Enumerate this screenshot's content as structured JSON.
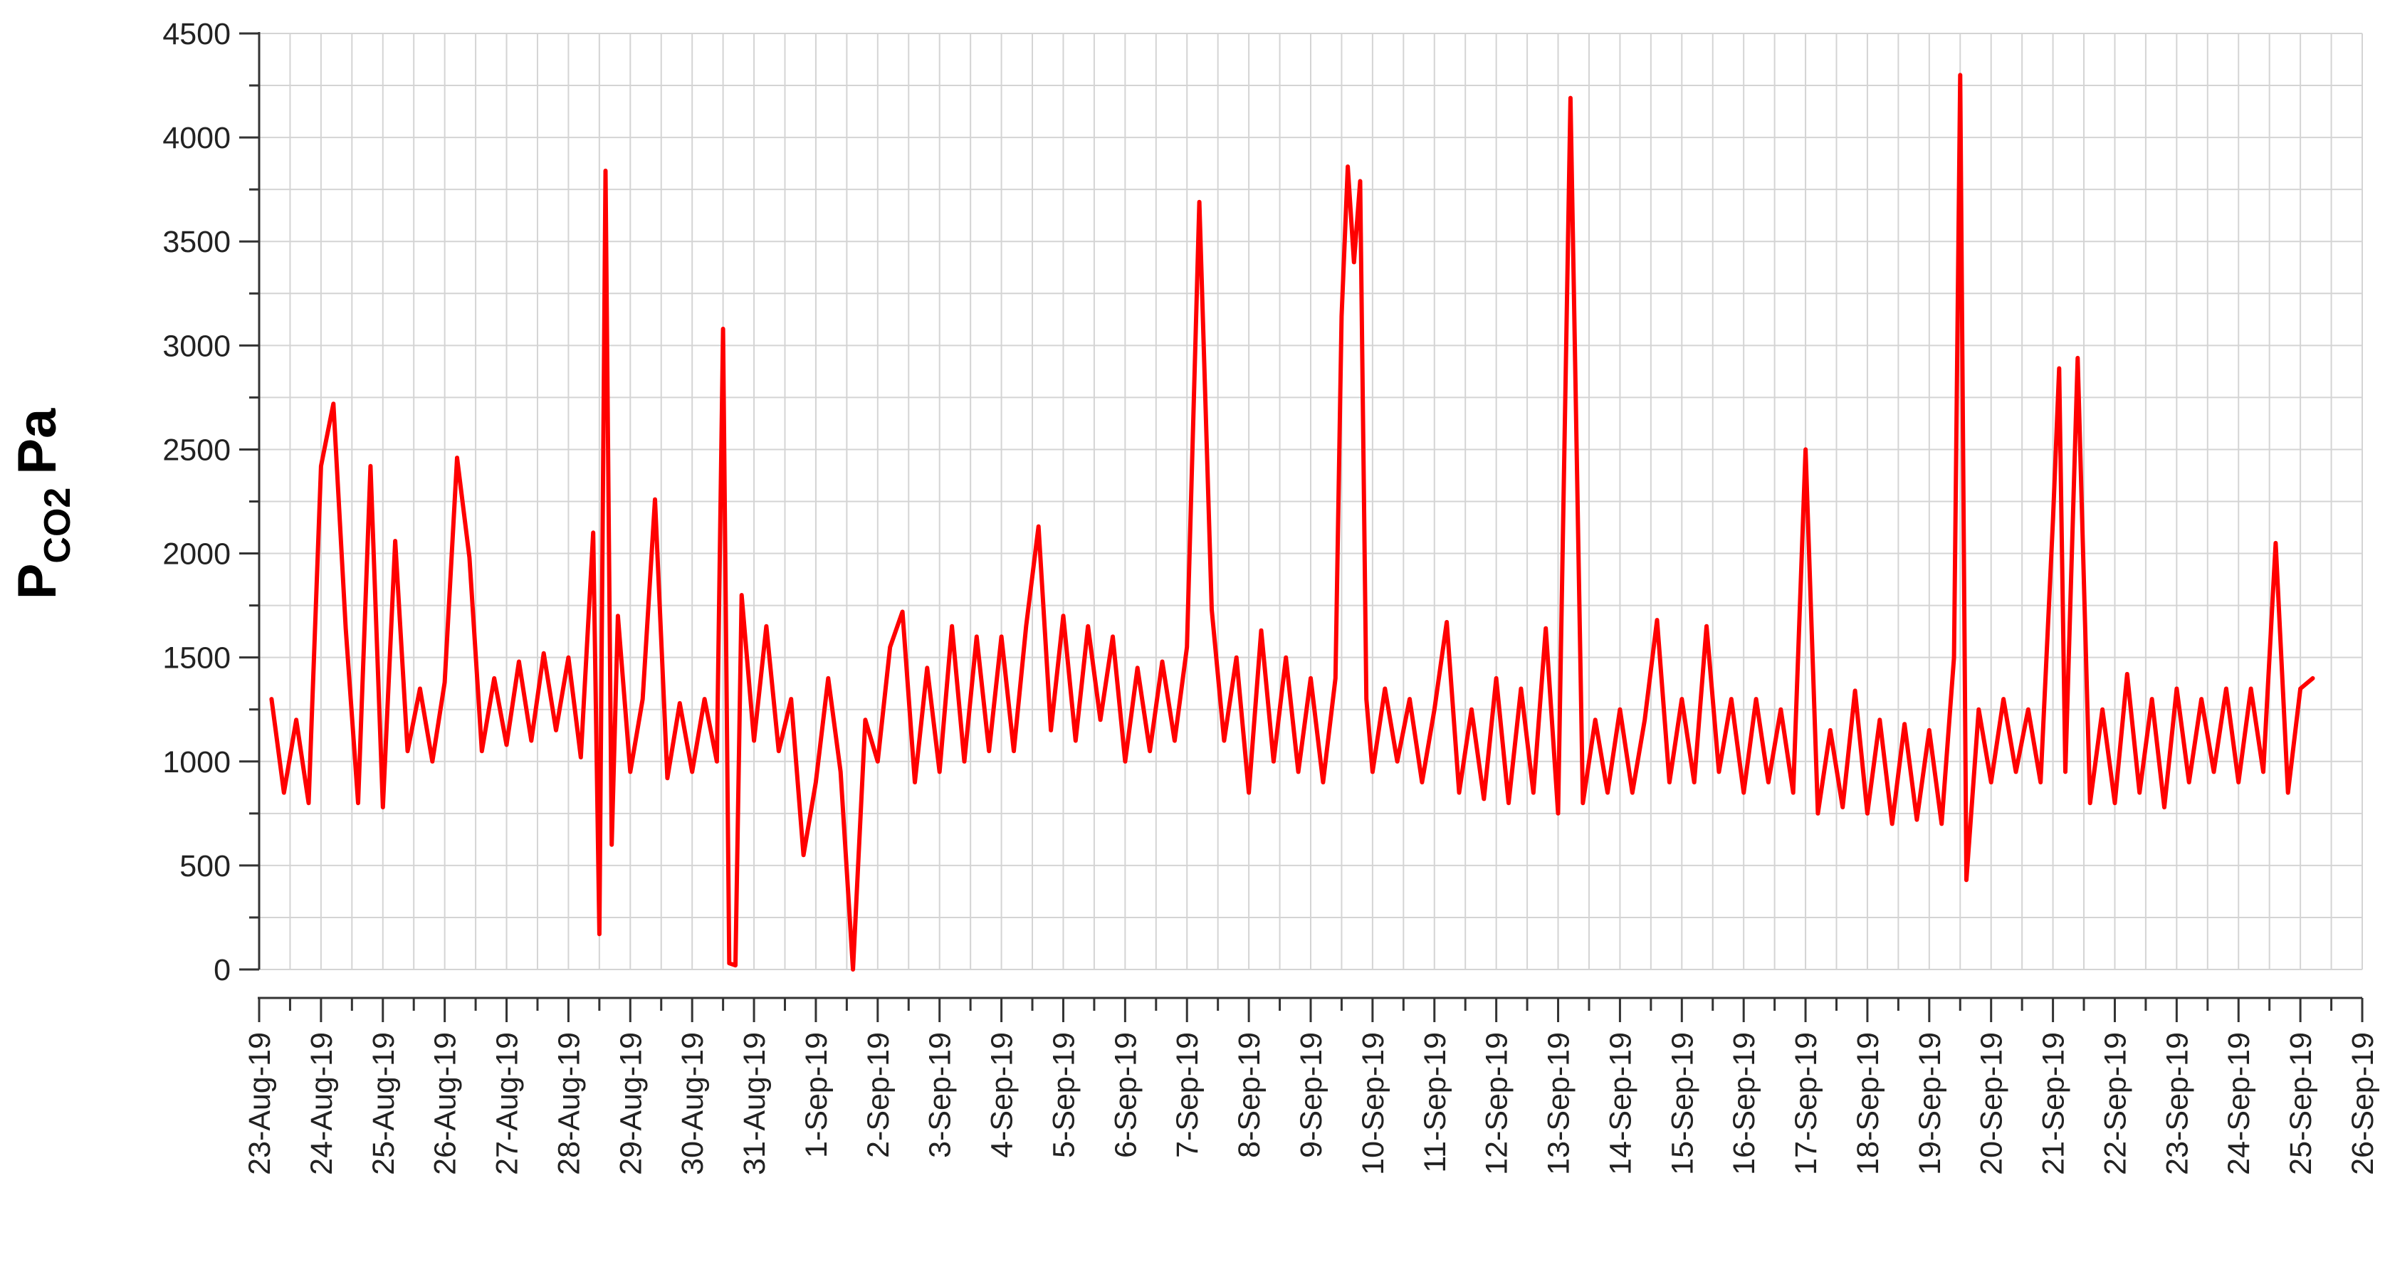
{
  "chart_data": {
    "type": "line",
    "ylabel": {
      "text": "P",
      "subscript": "CO2",
      "unit": "Pa"
    },
    "color": "#ff0000",
    "xlim": [
      43700,
      43734
    ],
    "xticks": [
      {
        "value": 43700,
        "label": "23-Aug-19"
      },
      {
        "value": 43701,
        "label": "24-Aug-19"
      },
      {
        "value": 43702,
        "label": "25-Aug-19"
      },
      {
        "value": 43703,
        "label": "26-Aug-19"
      },
      {
        "value": 43704,
        "label": "27-Aug-19"
      },
      {
        "value": 43705,
        "label": "28-Aug-19"
      },
      {
        "value": 43706,
        "label": "29-Aug-19"
      },
      {
        "value": 43707,
        "label": "30-Aug-19"
      },
      {
        "value": 43708,
        "label": "31-Aug-19"
      },
      {
        "value": 43709,
        "label": "1-Sep-19"
      },
      {
        "value": 43710,
        "label": "2-Sep-19"
      },
      {
        "value": 43711,
        "label": "3-Sep-19"
      },
      {
        "value": 43712,
        "label": "4-Sep-19"
      },
      {
        "value": 43713,
        "label": "5-Sep-19"
      },
      {
        "value": 43714,
        "label": "6-Sep-19"
      },
      {
        "value": 43715,
        "label": "7-Sep-19"
      },
      {
        "value": 43716,
        "label": "8-Sep-19"
      },
      {
        "value": 43717,
        "label": "9-Sep-19"
      },
      {
        "value": 43718,
        "label": "10-Sep-19"
      },
      {
        "value": 43719,
        "label": "11-Sep-19"
      },
      {
        "value": 43720,
        "label": "12-Sep-19"
      },
      {
        "value": 43721,
        "label": "13-Sep-19"
      },
      {
        "value": 43722,
        "label": "14-Sep-19"
      },
      {
        "value": 43723,
        "label": "15-Sep-19"
      },
      {
        "value": 43724,
        "label": "16-Sep-19"
      },
      {
        "value": 43725,
        "label": "17-Sep-19"
      },
      {
        "value": 43726,
        "label": "18-Sep-19"
      },
      {
        "value": 43727,
        "label": "19-Sep-19"
      },
      {
        "value": 43728,
        "label": "20-Sep-19"
      },
      {
        "value": 43729,
        "label": "21-Sep-19"
      },
      {
        "value": 43730,
        "label": "22-Sep-19"
      },
      {
        "value": 43731,
        "label": "23-Sep-19"
      },
      {
        "value": 43732,
        "label": "24-Sep-19"
      },
      {
        "value": 43733,
        "label": "25-Sep-19"
      },
      {
        "value": 43734,
        "label": "26-Sep-19"
      }
    ],
    "x_minor_ticks": [
      43700.5,
      43701.5,
      43702.5,
      43703.5,
      43704.5,
      43705.5,
      43706.5,
      43707.5,
      43708.5,
      43709.5,
      43710.5,
      43711.5,
      43712.5,
      43713.5,
      43714.5,
      43715.5,
      43716.5,
      43717.5,
      43718.5,
      43719.5,
      43720.5,
      43721.5,
      43722.5,
      43723.5,
      43724.5,
      43725.5,
      43726.5,
      43727.5,
      43728.5,
      43729.5,
      43730.5,
      43731.5,
      43732.5,
      43733.5
    ],
    "ylim": [
      0,
      4500
    ],
    "yticks": [
      0,
      500,
      1000,
      1500,
      2000,
      2500,
      3000,
      3500,
      4000,
      4500
    ],
    "y_minor_ticks": [
      250,
      750,
      1250,
      1750,
      2250,
      2750,
      3250,
      3750,
      4250
    ],
    "grid": true,
    "x": [
      43700.2,
      43700.4,
      43700.6,
      43700.8,
      43701,
      43701.2,
      43701.4,
      43701.6,
      43701.8,
      43702,
      43702.2,
      43702.4,
      43702.6,
      43702.8,
      43703,
      43703.2,
      43703.4,
      43703.6,
      43703.8,
      43704,
      43704.2,
      43704.4,
      43704.6,
      43704.8,
      43705,
      43705.2,
      43705.4,
      43705.5,
      43705.6,
      43705.7,
      43705.8,
      43706,
      43706.2,
      43706.4,
      43706.6,
      43706.8,
      43707,
      43707.2,
      43707.4,
      43707.5,
      43707.6,
      43707.7,
      43707.8,
      43708,
      43708.2,
      43708.4,
      43708.6,
      43708.8,
      43709,
      43709.2,
      43709.4,
      43709.6,
      43709.8,
      43710,
      43710.2,
      43710.4,
      43710.6,
      43710.8,
      43711,
      43711.2,
      43711.4,
      43711.6,
      43711.8,
      43712,
      43712.2,
      43712.4,
      43712.6,
      43712.8,
      43713,
      43713.2,
      43713.4,
      43713.6,
      43713.8,
      43714,
      43714.2,
      43714.4,
      43714.6,
      43714.8,
      43715,
      43715.2,
      43715.4,
      43715.6,
      43715.8,
      43716,
      43716.2,
      43716.4,
      43716.6,
      43716.8,
      43717,
      43717.2,
      43717.4,
      43717.5,
      43717.6,
      43717.7,
      43717.8,
      43717.9,
      43718,
      43718.2,
      43718.4,
      43718.6,
      43718.8,
      43719,
      43719.2,
      43719.4,
      43719.6,
      43719.8,
      43720,
      43720.2,
      43720.4,
      43720.6,
      43720.8,
      43721,
      43721.2,
      43721.4,
      43721.6,
      43721.8,
      43722,
      43722.2,
      43722.4,
      43722.6,
      43722.8,
      43723,
      43723.2,
      43723.4,
      43723.6,
      43723.8,
      43724,
      43724.2,
      43724.4,
      43724.6,
      43724.8,
      43725,
      43725.2,
      43725.4,
      43725.6,
      43725.8,
      43726,
      43726.2,
      43726.4,
      43726.6,
      43726.8,
      43727,
      43727.2,
      43727.4,
      43727.5,
      43727.6,
      43727.8,
      43728,
      43728.2,
      43728.4,
      43728.6,
      43728.8,
      43729,
      43729.1,
      43729.2,
      43729.4,
      43729.6,
      43729.8,
      43730,
      43730.2,
      43730.4,
      43730.6,
      43730.8,
      43731,
      43731.2,
      43731.4,
      43731.6,
      43731.8,
      43732,
      43732.2,
      43732.4,
      43732.6,
      43732.8,
      43733,
      43733.2
    ],
    "values": [
      1300,
      850,
      1200,
      800,
      2420,
      2720,
      1640,
      800,
      2420,
      780,
      2060,
      1050,
      1350,
      1000,
      1380,
      2460,
      1980,
      1050,
      1400,
      1080,
      1480,
      1100,
      1520,
      1150,
      1500,
      1020,
      2100,
      170,
      3840,
      600,
      1700,
      950,
      1300,
      2260,
      920,
      1280,
      950,
      1300,
      1000,
      3080,
      30,
      20,
      1800,
      1100,
      1650,
      1050,
      1300,
      550,
      900,
      1400,
      950,
      0,
      1200,
      1000,
      1550,
      1720,
      900,
      1450,
      950,
      1650,
      1000,
      1600,
      1050,
      1600,
      1050,
      1650,
      2130,
      1150,
      1700,
      1100,
      1650,
      1200,
      1600,
      1000,
      1450,
      1050,
      1480,
      1100,
      1550,
      3690,
      1730,
      1100,
      1500,
      850,
      1630,
      1000,
      1500,
      950,
      1400,
      900,
      1400,
      3140,
      3860,
      3400,
      3790,
      1300,
      950,
      1350,
      1000,
      1300,
      900,
      1250,
      1670,
      850,
      1250,
      820,
      1400,
      800,
      1350,
      850,
      1640,
      750,
      4190,
      800,
      1200,
      850,
      1250,
      850,
      1200,
      1680,
      900,
      1300,
      900,
      1650,
      950,
      1300,
      850,
      1300,
      900,
      1250,
      850,
      2500,
      750,
      1150,
      780,
      1340,
      750,
      1200,
      700,
      1180,
      720,
      1150,
      700,
      1500,
      4300,
      430,
      1250,
      900,
      1300,
      950,
      1250,
      900,
      2160,
      2890,
      950,
      2940,
      800,
      1250,
      800,
      1420,
      850,
      1300,
      780,
      1350,
      900,
      1300,
      950,
      1350,
      900,
      1350,
      950,
      2050,
      850,
      1350,
      1400
    ]
  }
}
